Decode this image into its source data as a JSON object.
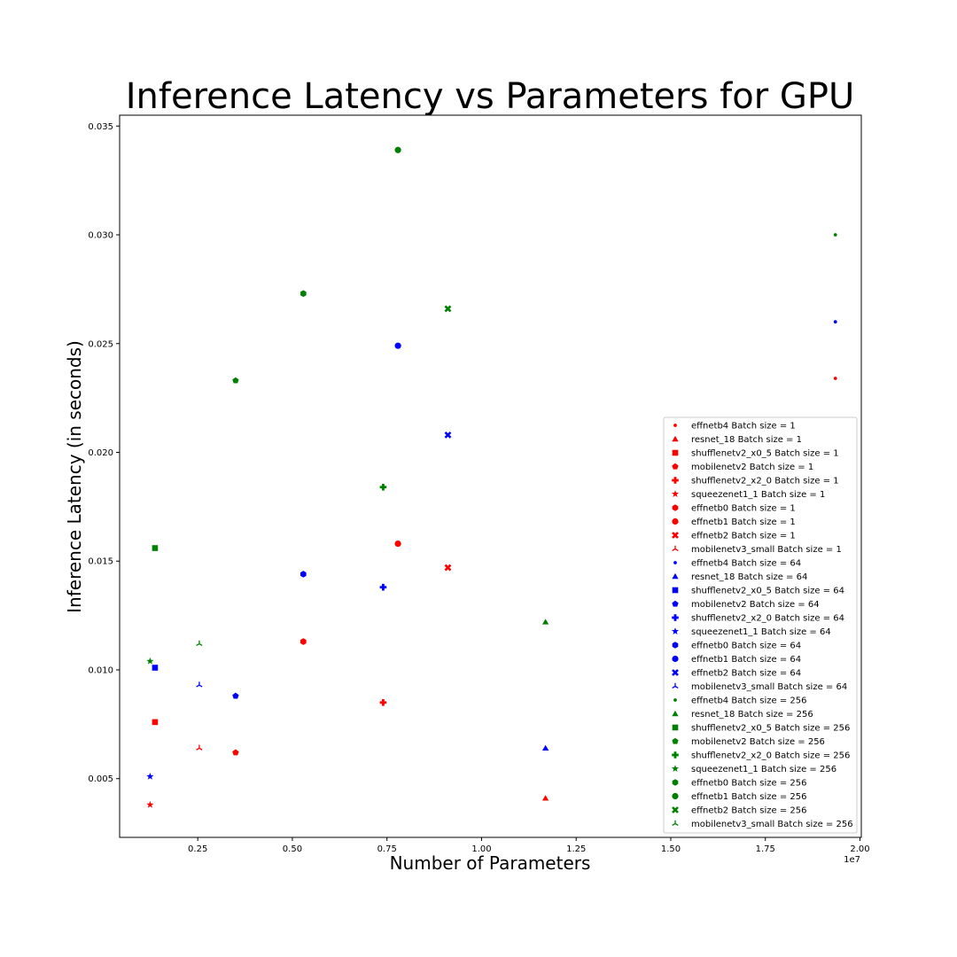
{
  "chart_data": {
    "type": "scatter",
    "title": "Inference Latency vs Parameters for GPU",
    "xlabel": "Number of Parameters",
    "ylabel": "Inference Latency (in seconds)",
    "x_offset_label": "1e7",
    "xlim": [
      0.0435,
      2.0035
    ],
    "ylim": [
      0.0023,
      0.0355
    ],
    "xticks": [
      0.25,
      0.5,
      0.75,
      1.0,
      1.25,
      1.5,
      1.75,
      2.0
    ],
    "xtick_labels": [
      "0.25",
      "0.50",
      "0.75",
      "1.00",
      "1.25",
      "1.50",
      "1.75",
      "2.00"
    ],
    "yticks": [
      0.005,
      0.01,
      0.015,
      0.02,
      0.025,
      0.03,
      0.035
    ],
    "ytick_labels": [
      "0.005",
      "0.010",
      "0.015",
      "0.020",
      "0.025",
      "0.030",
      "0.035"
    ],
    "grid": false,
    "legend_position": "lower-right",
    "colors": {
      "batch_1": "#ff0000",
      "batch_64": "#0000ff",
      "batch_256": "#008000"
    },
    "series": [
      {
        "name": "effnetb4 Batch size = 1",
        "marker": "point",
        "color": "#ff0000",
        "x": [
          1.935
        ],
        "y": [
          0.0234
        ]
      },
      {
        "name": "resnet_18 Batch size = 1",
        "marker": "triangle",
        "color": "#ff0000",
        "x": [
          1.169
        ],
        "y": [
          0.0041
        ]
      },
      {
        "name": "shufflenetv2_x0_5 Batch size = 1",
        "marker": "square",
        "color": "#ff0000",
        "x": [
          0.137
        ],
        "y": [
          0.0076
        ]
      },
      {
        "name": "mobilenetv2 Batch size = 1",
        "marker": "pentagon",
        "color": "#ff0000",
        "x": [
          0.35
        ],
        "y": [
          0.0062
        ]
      },
      {
        "name": "shufflenetv2_x2_0 Batch size = 1",
        "marker": "plus",
        "color": "#ff0000",
        "x": [
          0.74
        ],
        "y": [
          0.0085
        ]
      },
      {
        "name": "squeezenet1_1 Batch size = 1",
        "marker": "star",
        "color": "#ff0000",
        "x": [
          0.124
        ],
        "y": [
          0.0038
        ]
      },
      {
        "name": "effnetb0 Batch size = 1",
        "marker": "hexagon",
        "color": "#ff0000",
        "x": [
          0.529
        ],
        "y": [
          0.0113
        ]
      },
      {
        "name": "effnetb1 Batch size = 1",
        "marker": "circle",
        "color": "#ff0000",
        "x": [
          0.779
        ],
        "y": [
          0.0158
        ]
      },
      {
        "name": "effnetb2 Batch size = 1",
        "marker": "x",
        "color": "#ff0000",
        "x": [
          0.911
        ],
        "y": [
          0.0147
        ]
      },
      {
        "name": "mobilenetv3_small Batch size = 1",
        "marker": "tri_down",
        "color": "#ff0000",
        "x": [
          0.254
        ],
        "y": [
          0.0064
        ]
      },
      {
        "name": "effnetb4 Batch size = 64",
        "marker": "point",
        "color": "#0000ff",
        "x": [
          1.935
        ],
        "y": [
          0.026
        ]
      },
      {
        "name": "resnet_18 Batch size = 64",
        "marker": "triangle",
        "color": "#0000ff",
        "x": [
          1.169
        ],
        "y": [
          0.0064
        ]
      },
      {
        "name": "shufflenetv2_x0_5 Batch size = 64",
        "marker": "square",
        "color": "#0000ff",
        "x": [
          0.137
        ],
        "y": [
          0.0101
        ]
      },
      {
        "name": "mobilenetv2 Batch size = 64",
        "marker": "pentagon",
        "color": "#0000ff",
        "x": [
          0.35
        ],
        "y": [
          0.0088
        ]
      },
      {
        "name": "shufflenetv2_x2_0 Batch size = 64",
        "marker": "plus",
        "color": "#0000ff",
        "x": [
          0.74
        ],
        "y": [
          0.0138
        ]
      },
      {
        "name": "squeezenet1_1 Batch size = 64",
        "marker": "star",
        "color": "#0000ff",
        "x": [
          0.124
        ],
        "y": [
          0.0051
        ]
      },
      {
        "name": "effnetb0 Batch size = 64",
        "marker": "hexagon",
        "color": "#0000ff",
        "x": [
          0.529
        ],
        "y": [
          0.0144
        ]
      },
      {
        "name": "effnetb1 Batch size = 64",
        "marker": "circle",
        "color": "#0000ff",
        "x": [
          0.779
        ],
        "y": [
          0.0249
        ]
      },
      {
        "name": "effnetb2 Batch size = 64",
        "marker": "x",
        "color": "#0000ff",
        "x": [
          0.911
        ],
        "y": [
          0.0208
        ]
      },
      {
        "name": "mobilenetv3_small Batch size = 64",
        "marker": "tri_down",
        "color": "#0000ff",
        "x": [
          0.254
        ],
        "y": [
          0.0093
        ]
      },
      {
        "name": "effnetb4 Batch size = 256",
        "marker": "point",
        "color": "#008000",
        "x": [
          1.935
        ],
        "y": [
          0.03
        ]
      },
      {
        "name": "resnet_18 Batch size = 256",
        "marker": "triangle",
        "color": "#008000",
        "x": [
          1.169
        ],
        "y": [
          0.0122
        ]
      },
      {
        "name": "shufflenetv2_x0_5 Batch size = 256",
        "marker": "square",
        "color": "#008000",
        "x": [
          0.137
        ],
        "y": [
          0.0156
        ]
      },
      {
        "name": "mobilenetv2 Batch size = 256",
        "marker": "pentagon",
        "color": "#008000",
        "x": [
          0.35
        ],
        "y": [
          0.0233
        ]
      },
      {
        "name": "shufflenetv2_x2_0 Batch size = 256",
        "marker": "plus",
        "color": "#008000",
        "x": [
          0.74
        ],
        "y": [
          0.0184
        ]
      },
      {
        "name": "squeezenet1_1 Batch size = 256",
        "marker": "star",
        "color": "#008000",
        "x": [
          0.124
        ],
        "y": [
          0.0104
        ]
      },
      {
        "name": "effnetb0 Batch size = 256",
        "marker": "hexagon",
        "color": "#008000",
        "x": [
          0.529
        ],
        "y": [
          0.0273
        ]
      },
      {
        "name": "effnetb1 Batch size = 256",
        "marker": "circle",
        "color": "#008000",
        "x": [
          0.779
        ],
        "y": [
          0.0339
        ]
      },
      {
        "name": "effnetb2 Batch size = 256",
        "marker": "x",
        "color": "#008000",
        "x": [
          0.911
        ],
        "y": [
          0.0266
        ]
      },
      {
        "name": "mobilenetv3_small Batch size = 256",
        "marker": "tri_down",
        "color": "#008000",
        "x": [
          0.254
        ],
        "y": [
          0.0112
        ]
      }
    ]
  }
}
